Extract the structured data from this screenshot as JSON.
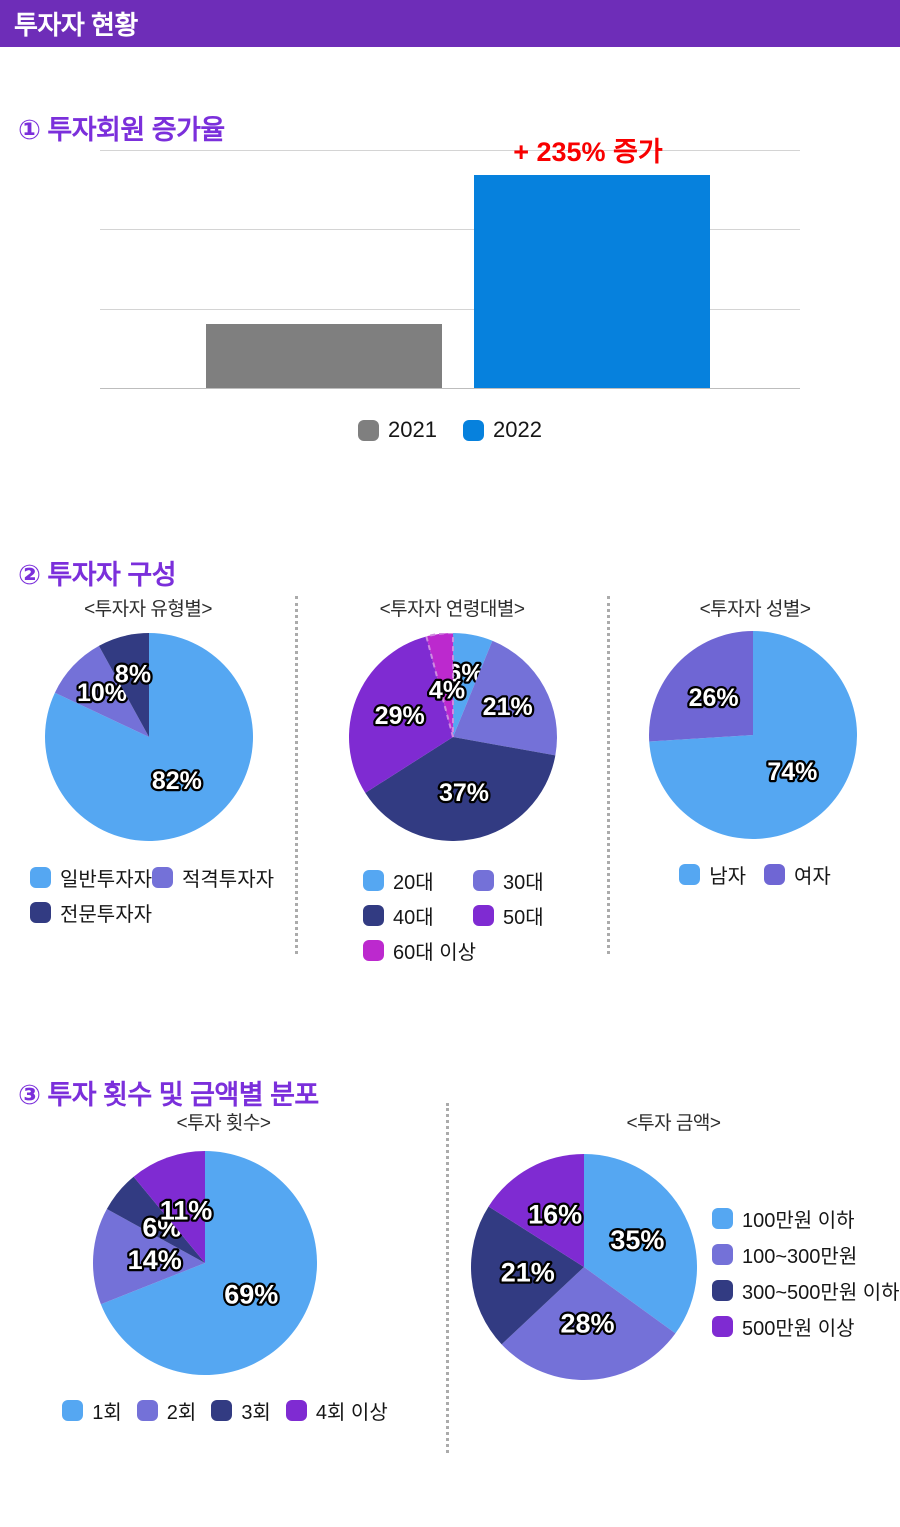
{
  "header": {
    "title": "투자자 현황"
  },
  "sections": {
    "growth": {
      "title": "① 투자회원 증가율"
    },
    "composition": {
      "title": "② 투자자 구성"
    },
    "distribution": {
      "title": "③ 투자 횟수 및 금액별 분포"
    }
  },
  "theme": {
    "header_bg": "#6e2db8",
    "section_title": "#7b2fdb",
    "annotation_red": "#f80000",
    "pie_blue": "#55a7f2",
    "pie_slate": "#7471d8",
    "pie_navy": "#323b82",
    "pie_violet": "#7f2bd2",
    "pie_magenta": "#bc29ce",
    "bar_gray": "#7f7f7f",
    "bar_blue": "#0681dd"
  },
  "chart_data": [
    {
      "id": "growth",
      "type": "bar",
      "title": "① 투자회원 증가율",
      "categories": [
        "2021",
        "2022"
      ],
      "values": [
        100,
        335
      ],
      "axis_max": 376,
      "annotation": "+ 235% 증가",
      "colors": [
        "#7f7f7f",
        "#0681dd"
      ],
      "ylabel": "",
      "grid": true,
      "legend_position": "bottom"
    },
    {
      "id": "type",
      "type": "pie",
      "title": "<투자자 유형별>",
      "labels": [
        "일반투자자",
        "적격투자자",
        "전문투자자"
      ],
      "values": [
        82,
        10,
        8
      ],
      "percent_labels": [
        "82%",
        "10%",
        "8%"
      ],
      "colors": [
        "#55a7f2",
        "#7471d8",
        "#323b82"
      ]
    },
    {
      "id": "age",
      "type": "pie",
      "title": "<투자자 연령대별>",
      "labels": [
        "20대",
        "30대",
        "40대",
        "50대",
        "60대 이상"
      ],
      "values": [
        6,
        21,
        37,
        29,
        4
      ],
      "percent_labels": [
        "6%",
        "21%",
        "37%",
        "29%",
        "4%"
      ],
      "colors": [
        "#55a7f2",
        "#7471d8",
        "#323b82",
        "#7f2bd2",
        "#bc29ce"
      ]
    },
    {
      "id": "gender",
      "type": "pie",
      "title": "<투자자 성별>",
      "labels": [
        "남자",
        "여자"
      ],
      "values": [
        74,
        26
      ],
      "percent_labels": [
        "74%",
        "26%"
      ],
      "colors": [
        "#55a7f2",
        "#6f66d4"
      ]
    },
    {
      "id": "count",
      "type": "pie",
      "title": "<투자 횟수>",
      "labels": [
        "1회",
        "2회",
        "3회",
        "4회 이상"
      ],
      "values": [
        69,
        14,
        6,
        11
      ],
      "percent_labels": [
        "69%",
        "14%",
        "6%",
        "11%"
      ],
      "colors": [
        "#55a7f2",
        "#7471d8",
        "#323b82",
        "#7f2bd2"
      ]
    },
    {
      "id": "amount",
      "type": "pie",
      "title": "<투자 금액>",
      "labels": [
        "100만원 이하",
        "100~300만원",
        "300~500만원 이하",
        "500만원 이상"
      ],
      "values": [
        35,
        28,
        21,
        16
      ],
      "percent_labels": [
        "35%",
        "28%",
        "21%",
        "16%"
      ],
      "colors": [
        "#55a7f2",
        "#7471d8",
        "#323b82",
        "#7f2bd2"
      ]
    }
  ]
}
